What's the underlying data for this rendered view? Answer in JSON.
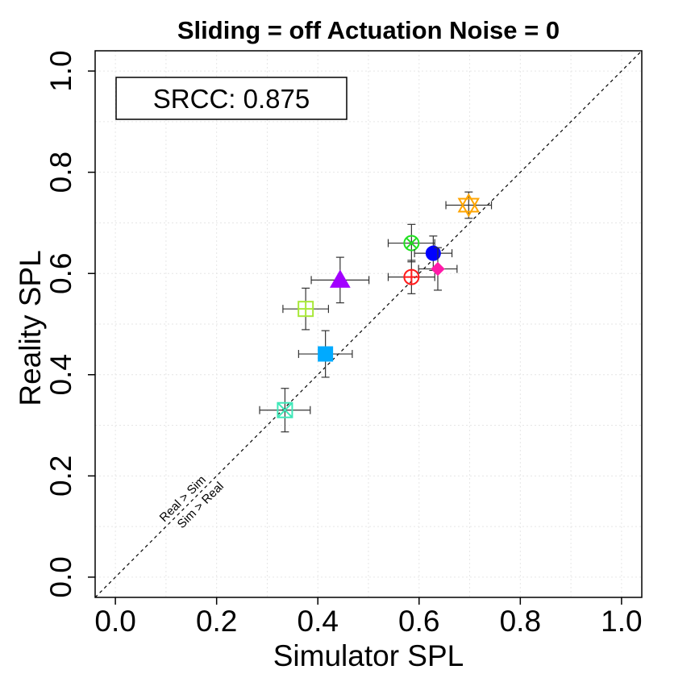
{
  "chart_data": {
    "type": "scatter",
    "title": "Sliding = off Actuation Noise = 0",
    "xlabel": "Simulator SPL",
    "ylabel": "Reality SPL",
    "xlim": [
      -0.04,
      1.04
    ],
    "ylim": [
      -0.04,
      1.04
    ],
    "xticks": [
      "0.0",
      "0.2",
      "0.4",
      "0.6",
      "0.8",
      "1.0"
    ],
    "yticks": [
      "0.0",
      "0.2",
      "0.4",
      "0.6",
      "0.8",
      "1.0"
    ],
    "grid": true,
    "srcc_label": "SRCC: 0.875",
    "diagonal_labels": [
      "Real > Sim",
      "Sim > Real"
    ],
    "points": [
      {
        "x": 0.335,
        "y": 0.33,
        "xerr": 0.05,
        "yerr": 0.043,
        "marker": "square-x-open",
        "color": "#3ee8b8"
      },
      {
        "x": 0.415,
        "y": 0.441,
        "xerr": 0.053,
        "yerr": 0.046,
        "marker": "square-filled",
        "color": "#00aaff"
      },
      {
        "x": 0.376,
        "y": 0.53,
        "xerr": 0.045,
        "yerr": 0.041,
        "marker": "square-plus-open",
        "color": "#a8e838"
      },
      {
        "x": 0.444,
        "y": 0.587,
        "xerr": 0.057,
        "yerr": 0.045,
        "marker": "triangle-filled",
        "color": "#a200ff"
      },
      {
        "x": 0.585,
        "y": 0.66,
        "xerr": 0.046,
        "yerr": 0.037,
        "marker": "circle-x-open",
        "color": "#20e020"
      },
      {
        "x": 0.585,
        "y": 0.593,
        "xerr": 0.046,
        "yerr": 0.033,
        "marker": "circle-plus-open",
        "color": "#ff1a1a"
      },
      {
        "x": 0.628,
        "y": 0.64,
        "xerr": 0.037,
        "yerr": 0.034,
        "marker": "circle-filled",
        "color": "#0000ff"
      },
      {
        "x": 0.637,
        "y": 0.609,
        "xerr": 0.038,
        "yerr": 0.042,
        "marker": "diamond-filled",
        "color": "#ff1aa8"
      },
      {
        "x": 0.698,
        "y": 0.735,
        "xerr": 0.045,
        "yerr": 0.026,
        "marker": "star-of-david-open",
        "color": "#ffa500"
      }
    ]
  }
}
